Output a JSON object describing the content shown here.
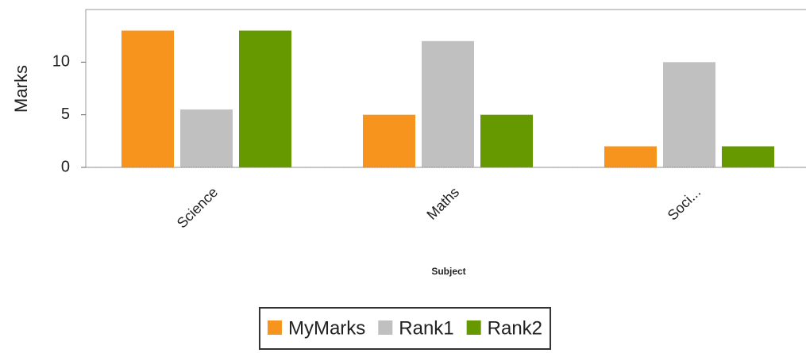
{
  "chart_data": {
    "type": "bar",
    "categories": [
      "Science",
      "Maths",
      "Soci..."
    ],
    "series": [
      {
        "name": "MyMarks",
        "color": "#f7941d",
        "values": [
          13,
          5,
          2
        ]
      },
      {
        "name": "Rank1",
        "color": "#c0c0c0",
        "values": [
          5.5,
          12,
          10
        ]
      },
      {
        "name": "Rank2",
        "color": "#669900",
        "values": [
          13,
          5,
          2
        ]
      }
    ],
    "ylabel": "Marks",
    "xlabel": "Subject",
    "ylim": [
      0,
      15
    ],
    "yticks": [
      0,
      5,
      10
    ],
    "grid": false,
    "legend": "bottom"
  }
}
